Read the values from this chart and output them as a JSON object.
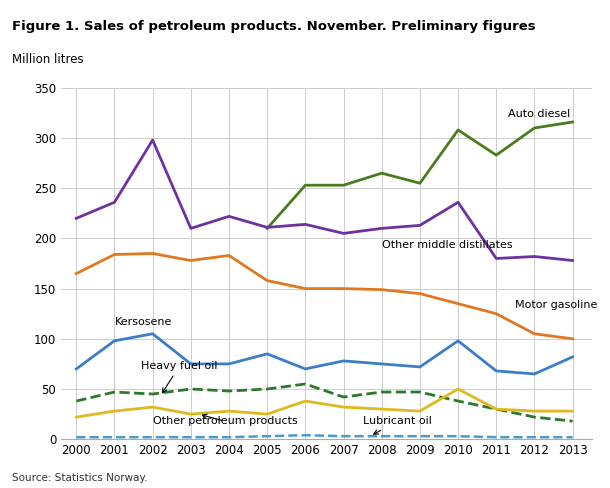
{
  "title": "Figure 1. Sales of petroleum products. November. Preliminary figures",
  "ylabel": "Million litres",
  "source": "Source: Statistics Norway.",
  "years": [
    2000,
    2001,
    2002,
    2003,
    2004,
    2005,
    2006,
    2007,
    2008,
    2009,
    2010,
    2011,
    2012,
    2013
  ],
  "series": {
    "Auto diesel": {
      "values": [
        null,
        null,
        null,
        null,
        null,
        210,
        253,
        253,
        265,
        255,
        308,
        283,
        310,
        316
      ],
      "color": "#4a7c1f",
      "linestyle": "-",
      "linewidth": 2.0,
      "dashes": []
    },
    "Other middle distillates": {
      "values": [
        220,
        236,
        298,
        210,
        222,
        211,
        214,
        205,
        210,
        213,
        236,
        180,
        182,
        178
      ],
      "color": "#7030a0",
      "linestyle": "-",
      "linewidth": 2.0,
      "dashes": []
    },
    "Motor gasoline": {
      "values": [
        165,
        184,
        185,
        178,
        183,
        158,
        150,
        150,
        149,
        145,
        135,
        125,
        105,
        100
      ],
      "color": "#e07820",
      "linestyle": "-",
      "linewidth": 2.0,
      "dashes": []
    },
    "Kersosene": {
      "values": [
        70,
        98,
        105,
        75,
        75,
        85,
        70,
        78,
        75,
        72,
        98,
        68,
        65,
        82
      ],
      "color": "#3a7ec8",
      "linestyle": "-",
      "linewidth": 2.0,
      "dashes": []
    },
    "Heavy fuel oil": {
      "values": [
        38,
        47,
        45,
        50,
        48,
        50,
        55,
        42,
        47,
        47,
        38,
        30,
        22,
        18
      ],
      "color": "#2a7a2a",
      "linestyle": "--",
      "linewidth": 2.0,
      "dashes": [
        6,
        3
      ]
    },
    "Other petroleum products": {
      "values": [
        22,
        28,
        32,
        25,
        28,
        25,
        38,
        32,
        30,
        28,
        50,
        30,
        28,
        28
      ],
      "color": "#e0b820",
      "linestyle": "-",
      "linewidth": 2.0,
      "dashes": []
    },
    "Lubricant oil": {
      "values": [
        2,
        2,
        2,
        2,
        2,
        3,
        4,
        3,
        3,
        3,
        3,
        2,
        2,
        2
      ],
      "color": "#4a9acf",
      "linestyle": "--",
      "linewidth": 1.8,
      "dashes": [
        6,
        3
      ]
    }
  },
  "ylim": [
    0,
    350
  ],
  "yticks": [
    0,
    50,
    100,
    150,
    200,
    250,
    300,
    350
  ],
  "background_color": "#ffffff",
  "grid_color": "#cccccc"
}
